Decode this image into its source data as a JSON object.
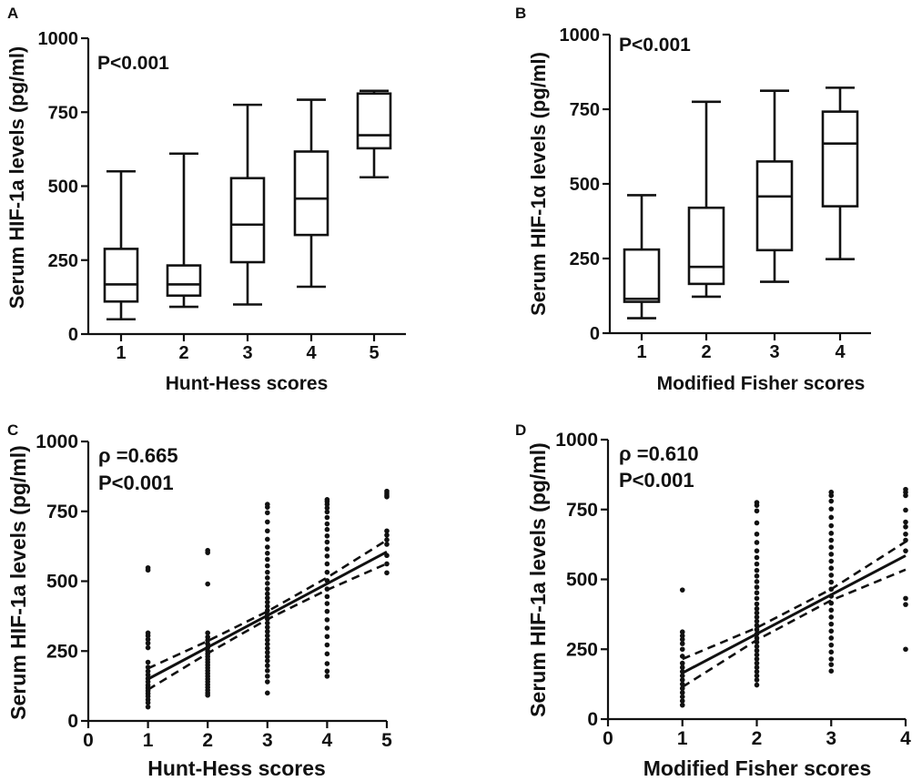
{
  "colors": {
    "ink": "#111111",
    "background": "#ffffff"
  },
  "chart_data": [
    {
      "panel": "A",
      "type": "box",
      "xlabel": "Hunt-Hess scores",
      "ylabel": "Serum HIF-1a levels (pg/ml)",
      "annotations": [
        "P<0.001"
      ],
      "categories": [
        "1",
        "2",
        "3",
        "4",
        "5"
      ],
      "ylim": [
        0,
        1000
      ],
      "yticks": [
        0,
        250,
        500,
        750,
        1000
      ],
      "boxes": [
        {
          "min": 50,
          "q1": 110,
          "median": 168,
          "q3": 288,
          "max": 550
        },
        {
          "min": 92,
          "q1": 130,
          "median": 168,
          "q3": 232,
          "max": 610
        },
        {
          "min": 100,
          "q1": 243,
          "median": 370,
          "q3": 527,
          "max": 775
        },
        {
          "min": 160,
          "q1": 335,
          "median": 458,
          "q3": 617,
          "max": 792
        },
        {
          "min": 530,
          "q1": 628,
          "median": 672,
          "q3": 813,
          "max": 822
        }
      ]
    },
    {
      "panel": "B",
      "type": "box",
      "xlabel": "Modified Fisher scores",
      "ylabel": "Serum HIF-1α levels (pg/ml)",
      "annotations": [
        "P<0.001"
      ],
      "categories": [
        "1",
        "2",
        "3",
        "4"
      ],
      "ylim": [
        0,
        1000
      ],
      "yticks": [
        0,
        250,
        500,
        750,
        1000
      ],
      "boxes": [
        {
          "min": 50,
          "q1": 105,
          "median": 115,
          "q3": 280,
          "max": 462
        },
        {
          "min": 122,
          "q1": 165,
          "median": 222,
          "q3": 420,
          "max": 775
        },
        {
          "min": 172,
          "q1": 278,
          "median": 458,
          "q3": 575,
          "max": 812
        },
        {
          "min": 248,
          "q1": 425,
          "median": 635,
          "q3": 742,
          "max": 822
        }
      ]
    },
    {
      "panel": "C",
      "type": "scatter",
      "xlabel": "Hunt-Hess scores",
      "ylabel": "Serum HIF-1a levels (pg/ml)",
      "annotations": [
        "ρ =0.665",
        "P<0.001"
      ],
      "xlim": [
        0,
        5
      ],
      "xticks": [
        0,
        1,
        2,
        3,
        4,
        5
      ],
      "ylim": [
        0,
        1000
      ],
      "yticks": [
        0,
        250,
        500,
        750,
        1000
      ],
      "points": [
        {
          "x": 1,
          "y": [
            548,
            540,
            315,
            305,
            292,
            278,
            262,
            210,
            192,
            178,
            165,
            152,
            140,
            128,
            118,
            108,
            98,
            88,
            76,
            65,
            50
          ]
        },
        {
          "x": 2,
          "y": [
            610,
            602,
            490,
            315,
            300,
            288,
            275,
            262,
            250,
            240,
            230,
            220,
            210,
            200,
            190,
            180,
            170,
            160,
            150,
            140,
            130,
            120,
            110,
            100,
            92
          ]
        },
        {
          "x": 3,
          "y": [
            775,
            765,
            745,
            712,
            680,
            650,
            622,
            600,
            578,
            555,
            532,
            512,
            492,
            472,
            455,
            440,
            425,
            410,
            395,
            380,
            365,
            350,
            335,
            320,
            305,
            290,
            275,
            260,
            245,
            230,
            215,
            198,
            180,
            160,
            140,
            100
          ]
        },
        {
          "x": 4,
          "y": [
            792,
            785,
            775,
            762,
            748,
            728,
            705,
            685,
            662,
            640,
            615,
            590,
            562,
            532,
            502,
            472,
            445,
            420,
            392,
            362,
            332,
            302,
            272,
            240,
            205,
            178,
            160
          ]
        },
        {
          "x": 5,
          "y": [
            822,
            815,
            808,
            802,
            680,
            665,
            648,
            632,
            592,
            562,
            530
          ]
        }
      ],
      "regression": {
        "x": [
          1,
          5
        ],
        "y": [
          150,
          605
        ]
      },
      "ci_upper": {
        "x": [
          1,
          2,
          3,
          4,
          5
        ],
        "y": [
          188,
          286,
          392,
          513,
          647
        ]
      },
      "ci_lower": {
        "x": [
          1,
          2,
          3,
          4,
          5
        ],
        "y": [
          112,
          242,
          364,
          469,
          563
        ]
      }
    },
    {
      "panel": "D",
      "type": "scatter",
      "xlabel": "Modified Fisher scores",
      "ylabel": "Serum HIF-1a levels (pg/ml)",
      "annotations": [
        "ρ =0.610",
        "P<0.001"
      ],
      "xlim": [
        0,
        4
      ],
      "xticks": [
        0,
        1,
        2,
        3,
        4
      ],
      "ylim": [
        0,
        1000
      ],
      "yticks": [
        0,
        250,
        500,
        750,
        1000
      ],
      "points": [
        {
          "x": 1,
          "y": [
            462,
            312,
            298,
            285,
            270,
            250,
            225,
            200,
            185,
            170,
            155,
            140,
            125,
            110,
            95,
            80,
            65,
            50
          ]
        },
        {
          "x": 2,
          "y": [
            775,
            765,
            745,
            702,
            662,
            632,
            602,
            578,
            555,
            532,
            512,
            492,
            472,
            452,
            432,
            412,
            395,
            380,
            365,
            350,
            335,
            320,
            305,
            290,
            275,
            260,
            245,
            230,
            215,
            200,
            185,
            170,
            155,
            140,
            122
          ]
        },
        {
          "x": 3,
          "y": [
            812,
            800,
            780,
            752,
            722,
            692,
            665,
            640,
            615,
            590,
            565,
            540,
            515,
            490,
            465,
            440,
            415,
            390,
            365,
            340,
            315,
            290,
            265,
            240,
            215,
            195,
            172
          ]
        },
        {
          "x": 4,
          "y": [
            822,
            812,
            800,
            748,
            705,
            688,
            662,
            640,
            602,
            432,
            410,
            250
          ]
        }
      ],
      "regression": {
        "x": [
          1,
          4
        ],
        "y": [
          165,
          585
        ]
      },
      "ci_upper": {
        "x": [
          1,
          2,
          3,
          4
        ],
        "y": [
          215,
          327,
          465,
          635
        ]
      },
      "ci_lower": {
        "x": [
          1,
          2,
          3,
          4
        ],
        "y": [
          115,
          283,
          425,
          535
        ]
      }
    }
  ]
}
